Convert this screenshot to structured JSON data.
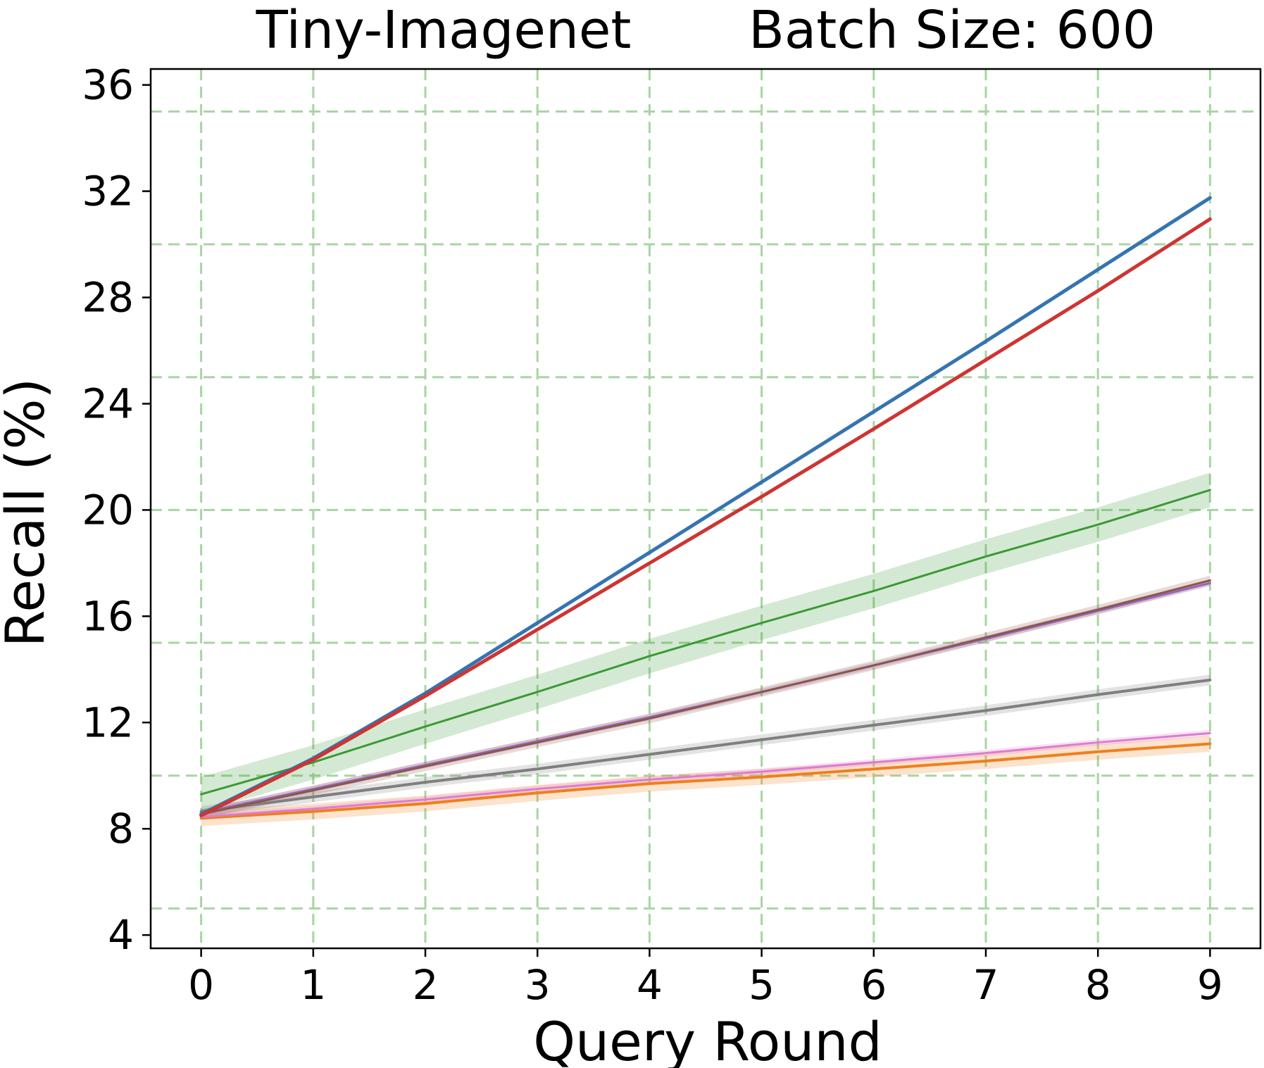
{
  "chart_data": {
    "type": "line",
    "title_left": "Tiny-Imagenet",
    "title_right": "Batch Size: 600",
    "xlabel": "Query Round",
    "ylabel": "Recall (%)",
    "xlim": [
      -0.45,
      9.45
    ],
    "ylim": [
      3.5,
      36.6
    ],
    "x": [
      0,
      1,
      2,
      3,
      4,
      5,
      6,
      7,
      8,
      9
    ],
    "x_ticks": [
      "0",
      "1",
      "2",
      "3",
      "4",
      "5",
      "6",
      "7",
      "8",
      "9"
    ],
    "y_ticks": [
      4,
      8,
      12,
      16,
      20,
      24,
      28,
      32,
      36
    ],
    "y_tick_labels": [
      "4",
      "8",
      "12",
      "16",
      "20",
      "24",
      "28",
      "32",
      "36"
    ],
    "grid": true,
    "grid_color": "#a8d5a2",
    "grid_y_values": [
      5,
      10,
      15,
      20,
      25,
      30,
      35
    ],
    "legend": "none",
    "series": [
      {
        "color": "#f07f1d",
        "width": 4,
        "band": 0.3,
        "values": [
          8.4,
          8.65,
          8.95,
          9.35,
          9.7,
          9.95,
          10.25,
          10.55,
          10.9,
          11.2
        ]
      },
      {
        "color": "#dd7ccf",
        "width": 3,
        "band": 0.12,
        "values": [
          8.45,
          8.75,
          9.1,
          9.5,
          9.85,
          10.15,
          10.5,
          10.85,
          11.25,
          11.6
        ]
      },
      {
        "color": "#7f7f7f",
        "width": 4,
        "band": 0.2,
        "values": [
          8.65,
          9.2,
          9.75,
          10.25,
          10.8,
          11.35,
          11.9,
          12.45,
          13.05,
          13.6
        ]
      },
      {
        "color": "#9467bd",
        "width": 3,
        "band": 0.12,
        "values": [
          8.6,
          9.5,
          10.4,
          11.3,
          12.2,
          13.15,
          14.15,
          15.15,
          16.2,
          17.25
        ]
      },
      {
        "color": "#8c564b",
        "width": 3,
        "band": 0.18,
        "values": [
          8.55,
          9.45,
          10.35,
          11.25,
          12.15,
          13.15,
          14.15,
          15.2,
          16.25,
          17.35
        ]
      },
      {
        "color": "#3a9a35",
        "width": 3,
        "band": 0.65,
        "values": [
          9.3,
          10.5,
          11.85,
          13.15,
          14.5,
          15.75,
          16.95,
          18.25,
          19.45,
          20.75
        ]
      },
      {
        "color": "#3574b0",
        "width": 5,
        "band": 0.0,
        "values": [
          8.55,
          10.65,
          13.1,
          15.75,
          18.4,
          21.05,
          23.7,
          26.35,
          29.05,
          31.75
        ]
      },
      {
        "color": "#cd3532",
        "width": 5,
        "band": 0.0,
        "values": [
          8.5,
          10.6,
          13.0,
          15.5,
          18.0,
          20.5,
          23.05,
          25.65,
          28.25,
          30.95
        ]
      }
    ]
  }
}
